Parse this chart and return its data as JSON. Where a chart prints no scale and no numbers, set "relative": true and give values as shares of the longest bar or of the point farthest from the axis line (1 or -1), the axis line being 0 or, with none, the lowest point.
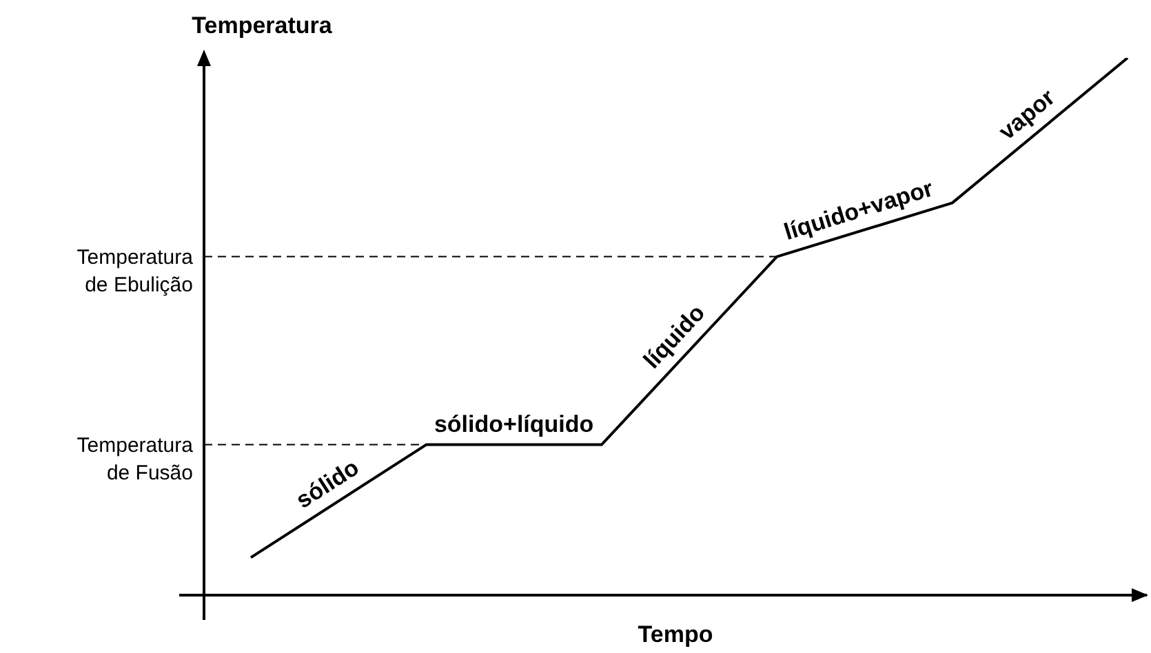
{
  "chart_data": {
    "type": "line",
    "relative": true,
    "xlabel": "Tempo",
    "ylabel": "Temperatura",
    "categories": [
      null,
      null,
      null,
      null,
      null,
      null
    ],
    "series": [
      {
        "color": "#000000",
        "values": [
          0.07,
          0.28,
          0.28,
          0.63,
          0.73,
          1
        ]
      }
    ],
    "ref_lines": [
      {
        "axis": "y",
        "value": 0.28,
        "label": "Temperatura\nde Fusão",
        "line_style": "dashed"
      },
      {
        "axis": "y",
        "value": 0.63,
        "label": "Temperatura\nde Ebulição",
        "line_style": "dashed"
      }
    ],
    "annotations": [
      "sólido",
      "sólido+líquido",
      "líquido",
      "líquido+vapor",
      "vapor"
    ],
    "legend": false,
    "marker": "none",
    "line_style": "solid"
  }
}
